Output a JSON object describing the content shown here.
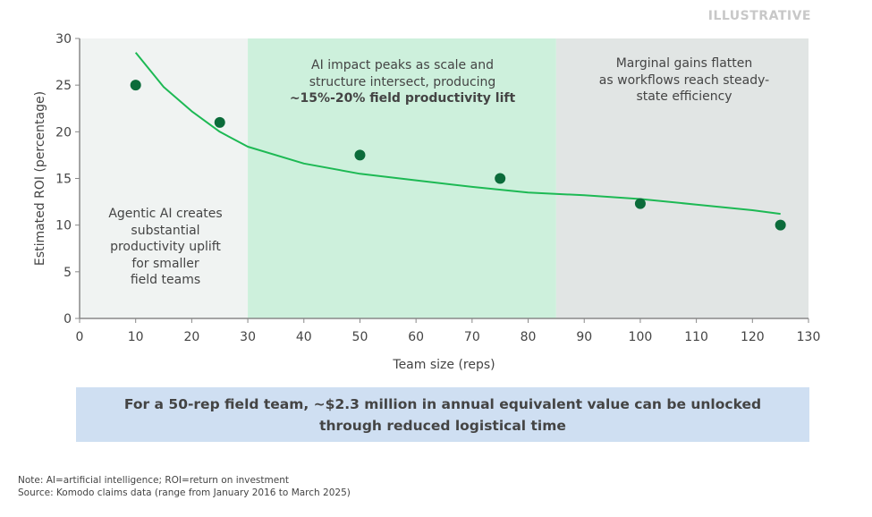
{
  "header": {
    "tag": "ILLUSTRATIVE"
  },
  "chart_data": {
    "type": "scatter",
    "xlabel": "Team size (reps)",
    "ylabel": "Estimated ROI (percentage)",
    "xlim": [
      0,
      130
    ],
    "ylim": [
      0,
      30
    ],
    "xticks": [
      0,
      10,
      20,
      30,
      40,
      50,
      60,
      70,
      80,
      90,
      100,
      110,
      120,
      130
    ],
    "yticks": [
      0,
      5,
      10,
      15,
      20,
      25,
      30
    ],
    "grid": false,
    "points": {
      "x": [
        10,
        25,
        50,
        75,
        100,
        125
      ],
      "y": [
        25,
        21,
        17.5,
        15,
        12.3,
        10
      ],
      "color": "#0b6b3a"
    },
    "trend_line": {
      "x": [
        10,
        15,
        20,
        25,
        30,
        40,
        50,
        60,
        70,
        80,
        90,
        100,
        110,
        120,
        125
      ],
      "y": [
        28.5,
        24.8,
        22.2,
        20.0,
        18.4,
        16.6,
        15.5,
        14.8,
        14.1,
        13.5,
        13.2,
        12.8,
        12.2,
        11.6,
        11.2
      ],
      "color": "#1db954"
    },
    "regions": [
      {
        "from": 0,
        "to": 30,
        "color": "#f0f3f2",
        "label": [
          "Agentic AI creates",
          "substantial",
          "productivity uplift",
          "for smaller",
          "field teams"
        ]
      },
      {
        "from": 30,
        "to": 85,
        "color": "#cdf0dc",
        "label": [
          "AI impact peaks as scale and",
          "structure intersect, producing"
        ],
        "label_bold": "~15%-20% field productivity lift"
      },
      {
        "from": 85,
        "to": 130,
        "color": "#e1e5e4",
        "label": [
          "Marginal gains flatten",
          "as workflows reach steady-",
          "state efficiency"
        ]
      }
    ]
  },
  "banner": {
    "line1": "For a 50-rep field team, ~$2.3 million in annual equivalent value can be unlocked",
    "line2": "through reduced logistical time"
  },
  "notes": {
    "note": "Note: AI=artificial intelligence; ROI=return on investment",
    "source": "Source: Komodo claims data (range from January 2016 to March 2025)"
  }
}
